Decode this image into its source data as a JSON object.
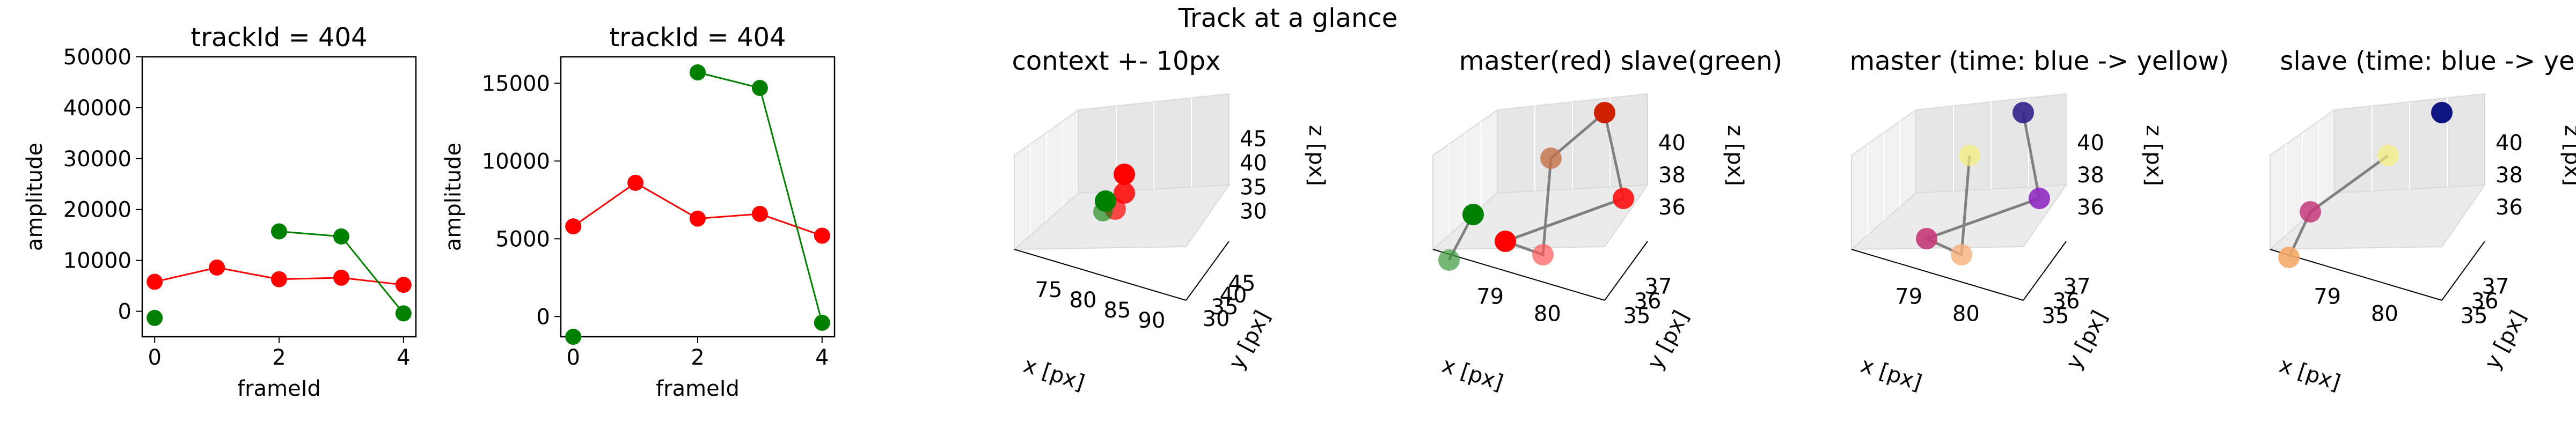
{
  "figure": {
    "suptitle": "Track at a glance"
  },
  "colors": {
    "master": "#ff0000",
    "slave": "#008000",
    "link": "#808080"
  },
  "chart_data": [
    {
      "type": "line",
      "title": "trackId = 404",
      "xlabel": "frameId",
      "ylabel": "amplitude",
      "xlim": [
        -0.2,
        4.2
      ],
      "ylim": [
        -5000,
        50000
      ],
      "xticks": [
        0,
        2,
        4
      ],
      "yticks": [
        0,
        10000,
        20000,
        30000,
        40000,
        50000
      ],
      "series": [
        {
          "color": "#ff0000",
          "x": [
            0,
            1,
            2,
            3,
            4
          ],
          "y": [
            5800,
            8600,
            6300,
            6600,
            5200
          ]
        },
        {
          "color": "#008000",
          "x": [
            2,
            3,
            4
          ],
          "y": [
            15700,
            14700,
            -400
          ],
          "isolated": [
            {
              "x": 0,
              "y": -1300
            }
          ]
        }
      ]
    },
    {
      "type": "line",
      "title": "trackId = 404",
      "xlabel": "frameId",
      "ylabel": "amplitude",
      "xlim": [
        -0.2,
        4.2
      ],
      "ylim": [
        -1300,
        16700
      ],
      "xticks": [
        0,
        2,
        4
      ],
      "yticks": [
        0,
        5000,
        10000,
        15000
      ],
      "series": [
        {
          "color": "#ff0000",
          "x": [
            0,
            1,
            2,
            3,
            4
          ],
          "y": [
            5800,
            8600,
            6300,
            6600,
            5200
          ]
        },
        {
          "color": "#008000",
          "x": [
            2,
            3,
            4
          ],
          "y": [
            15700,
            14700,
            -400
          ],
          "isolated": [
            {
              "x": 0,
              "y": -1300
            }
          ]
        }
      ]
    },
    {
      "type": "scatter3d",
      "title": "context +- 10px",
      "xlabel": "x [px]",
      "ylabel": "y [px]",
      "zlabel": "z [px]",
      "xticks": [
        "75",
        "80",
        "85",
        "90"
      ],
      "yticks": [
        "30",
        "35",
        "40",
        "45"
      ],
      "zticks": [
        "30",
        "35",
        "40",
        "45"
      ],
      "points": [
        {
          "color": "#ff0000",
          "alpha": 1.0
        },
        {
          "color": "#ff0000",
          "alpha": 0.85
        },
        {
          "color": "#ff0000",
          "alpha": 0.7
        },
        {
          "color": "#008000",
          "alpha": 1.0
        },
        {
          "color": "#008000",
          "alpha": 0.6
        }
      ]
    },
    {
      "type": "scatter3d",
      "title": "master(red) slave(green)",
      "xlabel": "x [px]",
      "ylabel": "y [px]",
      "zlabel": "z [px]",
      "xticks": [
        "79",
        "80"
      ],
      "yticks": [
        "35",
        "36",
        "37"
      ],
      "zticks": [
        "36",
        "38",
        "40"
      ],
      "points": [
        {
          "color": "#cc2200",
          "alpha": 1.0
        },
        {
          "color": "#c4704a",
          "alpha": 0.8
        },
        {
          "color": "#ff1010",
          "alpha": 0.9
        },
        {
          "color": "#008000",
          "alpha": 1.0
        },
        {
          "color": "#ff0000",
          "alpha": 1.0
        },
        {
          "color": "#ff5555",
          "alpha": 0.7
        },
        {
          "color": "#3a9a3a",
          "alpha": 0.7
        }
      ]
    },
    {
      "type": "scatter3d",
      "title": "master (time: blue -> yellow)",
      "xlabel": "x [px]",
      "ylabel": "y [px]",
      "zlabel": "z [px]",
      "xticks": [
        "79",
        "80"
      ],
      "yticks": [
        "35",
        "36",
        "37"
      ],
      "zticks": [
        "36",
        "38",
        "40"
      ],
      "points": [
        {
          "color": "#30208a",
          "alpha": 0.9
        },
        {
          "color": "#8e2bc0",
          "alpha": 0.9
        },
        {
          "color": "#f6f07a",
          "alpha": 0.7
        },
        {
          "color": "#c43a78",
          "alpha": 0.9
        },
        {
          "color": "#f5b07a",
          "alpha": 0.8
        }
      ]
    },
    {
      "type": "scatter3d",
      "title": "slave (time: blue -> yellow)",
      "xlabel": "x [px]",
      "ylabel": "y [px]",
      "zlabel": "z [px]",
      "xticks": [
        "79",
        "80"
      ],
      "yticks": [
        "35",
        "36",
        "37"
      ],
      "zticks": [
        "36",
        "38",
        "40"
      ],
      "points": [
        {
          "color": "#0d1580",
          "alpha": 1.0
        },
        {
          "color": "#f6f07a",
          "alpha": 0.7
        },
        {
          "color": "#c43a78",
          "alpha": 0.85
        },
        {
          "color": "#f5a86a",
          "alpha": 0.9
        }
      ]
    }
  ]
}
